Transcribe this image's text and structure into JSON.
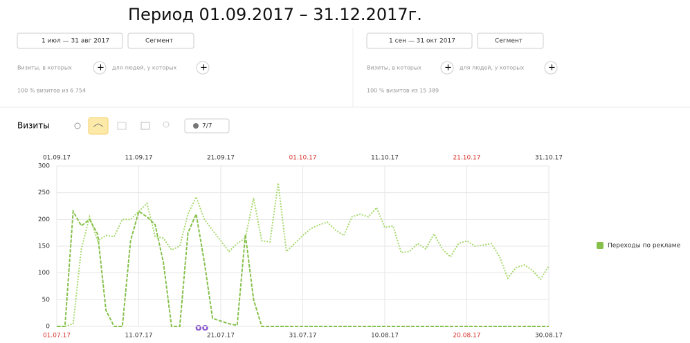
{
  "header": {
    "title": "Период 01.09.2017 – 31.12.2017г."
  },
  "panels": [
    {
      "date": "1 июл — 31 авг 2017",
      "segment": "Сегмент",
      "filter_visits": "Визиты, в которых",
      "filter_people": "для людей, у которых",
      "share": "100 % визитов из 6 754"
    },
    {
      "date": "1 сен — 31 окт 2017",
      "segment": "Сегмент",
      "filter_visits": "Визиты, в которых",
      "filter_people": "для людей, у которых",
      "share": "100 % визитов из 15 389"
    }
  ],
  "toolbar": {
    "metric": "Визиты",
    "counter": "7/7"
  },
  "chart_data": {
    "type": "line",
    "legend": "Переходы по рекламе",
    "ylim": [
      0,
      300
    ],
    "yticks": [
      0,
      50,
      100,
      150,
      200,
      250,
      300
    ],
    "grid": true,
    "xlim": [
      0,
      60
    ],
    "xticks_top": [
      {
        "value": 0,
        "label": "01.09.17"
      },
      {
        "value": 10,
        "label": "11.09.17"
      },
      {
        "value": 20,
        "label": "21.09.17"
      },
      {
        "value": 30,
        "label": "01.10.17"
      },
      {
        "value": 40,
        "label": "11.10.17"
      },
      {
        "value": 50,
        "label": "21.10.17"
      },
      {
        "value": 60,
        "label": "31.10.17"
      }
    ],
    "xticks_top_colors": [
      "#333",
      "#333",
      "#333",
      "#d9352e",
      "#333",
      "#d9352e",
      "#333"
    ],
    "xticks_bottom": [
      {
        "value": 0,
        "label": "01.07.17"
      },
      {
        "value": 10,
        "label": "11.07.17"
      },
      {
        "value": 20,
        "label": "21.07.17"
      },
      {
        "value": 30,
        "label": "31.07.17"
      },
      {
        "value": 40,
        "label": "10.08.17"
      },
      {
        "value": 50,
        "label": "20.08.17"
      },
      {
        "value": 60,
        "label": "30.08.17"
      }
    ],
    "xticks_bottom_colors": [
      "#d9352e",
      "#333",
      "#333",
      "#333",
      "#333",
      "#d9352e",
      "#333"
    ],
    "series": [
      {
        "color": "#a8d86e",
        "dash": "2,2",
        "values": [
          0,
          0,
          5,
          145,
          205,
          160,
          170,
          168,
          200,
          200,
          215,
          230,
          168,
          165,
          143,
          150,
          210,
          242,
          200,
          180,
          160,
          140,
          155,
          165,
          240,
          160,
          158,
          268,
          140,
          155,
          170,
          183,
          190,
          195,
          180,
          170,
          205,
          210,
          205,
          222,
          185,
          188,
          138,
          140,
          155,
          145,
          173,
          145,
          130,
          155,
          160,
          150,
          152,
          155,
          130,
          90,
          110,
          115,
          105,
          88,
          113
        ]
      },
      {
        "color": "#86c04a",
        "dash": "5,2",
        "values": [
          0,
          0,
          215,
          188,
          200,
          172,
          30,
          0,
          0,
          160,
          215,
          205,
          190,
          120,
          0,
          0,
          175,
          210,
          120,
          15,
          10,
          5,
          2,
          172,
          50,
          0,
          0,
          0,
          0,
          0,
          0,
          0,
          0,
          0,
          0,
          0,
          0,
          0,
          0,
          0,
          0,
          0,
          0,
          0,
          0,
          0,
          0,
          0,
          0,
          0,
          0,
          0,
          0,
          0,
          0,
          0,
          0,
          0,
          0,
          0,
          0
        ]
      }
    ]
  }
}
